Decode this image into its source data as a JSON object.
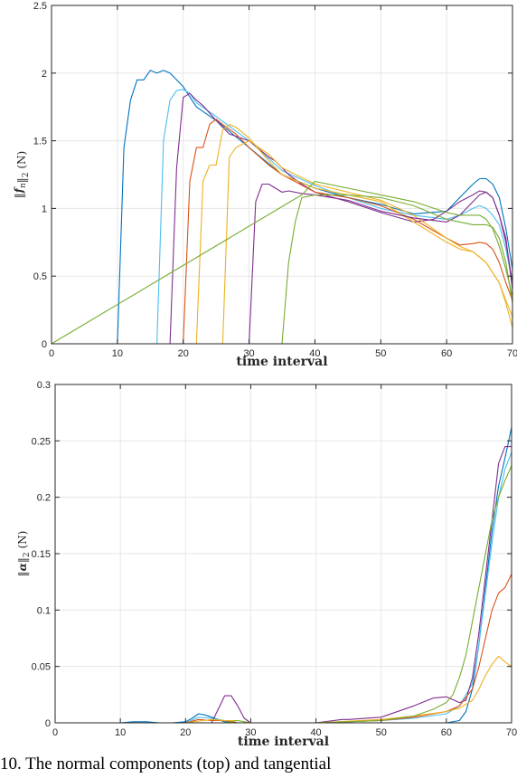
{
  "caption": "10. The normal components (top) and tangential",
  "colors": [
    "#0072bd",
    "#d95319",
    "#edb120",
    "#7e2f8e",
    "#77ac30",
    "#4dbeee"
  ],
  "chart_data": [
    {
      "type": "line",
      "xlabel": "time interval",
      "ylabel": "‖f_n‖₂ (N)",
      "ylabel_parts": {
        "norm_open": "‖",
        "sym": "f",
        "sub": "n",
        "norm_close": "‖",
        "sub2": "2",
        "unit": " (N)"
      },
      "xlim": [
        0,
        70
      ],
      "ylim": [
        0,
        2.5
      ],
      "xticks": [
        0,
        10,
        20,
        30,
        40,
        50,
        60,
        70
      ],
      "yticks": [
        0,
        0.5,
        1,
        1.5,
        2,
        2.5
      ],
      "ytick_labels": [
        "0",
        "0.5",
        "1",
        "1.5",
        "2",
        "2.5"
      ],
      "grid": true,
      "series": [
        {
          "color": "#0072bd",
          "x": [
            0,
            10,
            11,
            12,
            13,
            14,
            15,
            16,
            17,
            18,
            20,
            22,
            25,
            30,
            35,
            40,
            45,
            50,
            55,
            60,
            62,
            64,
            65,
            66,
            67,
            68,
            69,
            70
          ],
          "y": [
            0,
            0,
            1.45,
            1.8,
            1.95,
            1.95,
            2.02,
            2.0,
            2.02,
            2.0,
            1.9,
            1.75,
            1.65,
            1.45,
            1.25,
            1.15,
            1.08,
            1.03,
            0.96,
            0.98,
            1.08,
            1.18,
            1.22,
            1.22,
            1.18,
            1.08,
            0.85,
            0.55
          ]
        },
        {
          "color": "#4dbeee",
          "x": [
            0,
            16,
            17,
            18,
            19,
            20,
            21,
            22,
            25,
            30,
            35,
            40,
            45,
            50,
            55,
            60,
            62,
            64,
            65,
            66,
            67,
            68,
            69,
            70
          ],
          "y": [
            0,
            0,
            1.5,
            1.8,
            1.87,
            1.88,
            1.85,
            1.78,
            1.68,
            1.5,
            1.28,
            1.17,
            1.08,
            1.0,
            0.95,
            0.92,
            0.95,
            1.0,
            1.02,
            1.0,
            0.95,
            0.88,
            0.7,
            0.45
          ]
        },
        {
          "color": "#7e2f8e",
          "x": [
            0,
            18,
            19,
            20,
            21,
            22,
            23,
            25,
            27,
            30,
            32,
            33,
            34,
            35,
            36,
            38,
            40,
            45,
            50,
            55,
            58,
            60,
            62,
            64,
            65,
            66,
            67,
            68,
            69,
            70
          ],
          "y": [
            0,
            0,
            1.3,
            1.82,
            1.85,
            1.8,
            1.76,
            1.65,
            1.55,
            1.5,
            1.42,
            1.38,
            1.35,
            1.3,
            1.25,
            1.18,
            1.12,
            1.05,
            0.97,
            0.9,
            0.92,
            0.98,
            1.05,
            1.1,
            1.13,
            1.12,
            1.08,
            0.95,
            0.78,
            0.4
          ]
        },
        {
          "color": "#d95319",
          "x": [
            0,
            20,
            21,
            22,
            23,
            24,
            25,
            26,
            28,
            30,
            33,
            35,
            40,
            45,
            50,
            55,
            60,
            62,
            64,
            65,
            66,
            67,
            68,
            69,
            70
          ],
          "y": [
            0,
            0,
            1.2,
            1.45,
            1.45,
            1.62,
            1.66,
            1.62,
            1.55,
            1.45,
            1.32,
            1.25,
            1.12,
            1.08,
            1.02,
            0.92,
            0.78,
            0.73,
            0.74,
            0.75,
            0.74,
            0.7,
            0.6,
            0.45,
            0.32
          ]
        },
        {
          "color": "#edb120",
          "x": [
            0,
            22,
            23,
            24,
            25,
            26,
            27,
            28,
            30,
            33,
            35,
            40,
            45,
            50,
            55,
            60,
            62,
            64,
            66,
            68,
            69,
            70
          ],
          "y": [
            0,
            0,
            1.2,
            1.32,
            1.32,
            1.58,
            1.62,
            1.6,
            1.52,
            1.35,
            1.25,
            1.15,
            1.1,
            1.05,
            0.9,
            0.75,
            0.7,
            0.68,
            0.6,
            0.45,
            0.3,
            0.12
          ]
        },
        {
          "color": "#edb120",
          "x": [
            0,
            26,
            27,
            28,
            30,
            33,
            35,
            40,
            45,
            50,
            55,
            60,
            62,
            64,
            66,
            68,
            69,
            70
          ],
          "y": [
            0,
            0,
            1.38,
            1.45,
            1.5,
            1.4,
            1.3,
            1.18,
            1.12,
            1.06,
            0.95,
            0.78,
            0.72,
            0.68,
            0.6,
            0.45,
            0.32,
            0.2
          ]
        },
        {
          "color": "#7e2f8e",
          "x": [
            0,
            30,
            31,
            32,
            33,
            34,
            35,
            36,
            38,
            40,
            45,
            50,
            55,
            60,
            62,
            64,
            65,
            66,
            67,
            68,
            69,
            70
          ],
          "y": [
            0,
            0,
            1.05,
            1.18,
            1.18,
            1.15,
            1.12,
            1.13,
            1.11,
            1.1,
            1.06,
            0.98,
            0.93,
            0.9,
            0.95,
            1.05,
            1.1,
            1.12,
            1.08,
            0.95,
            0.75,
            0.45
          ]
        },
        {
          "color": "#77ac30",
          "x": [
            0,
            35,
            36,
            37,
            38,
            40,
            45,
            50,
            55,
            60,
            62,
            64,
            65,
            66,
            67,
            68,
            69,
            70
          ],
          "y": [
            0,
            0,
            0.6,
            0.9,
            1.08,
            1.1,
            1.1,
            1.08,
            1.02,
            0.92,
            0.9,
            0.88,
            0.88,
            0.88,
            0.86,
            0.78,
            0.6,
            0.3
          ]
        },
        {
          "color": "#77ac30",
          "x": [
            0,
            38,
            40,
            45,
            50,
            55,
            60,
            62,
            64,
            65,
            66,
            67,
            68,
            69,
            70
          ],
          "y": [
            0,
            1.1,
            1.2,
            1.15,
            1.1,
            1.05,
            0.97,
            0.95,
            0.95,
            0.95,
            0.92,
            0.85,
            0.72,
            0.55,
            0.35
          ]
        },
        {
          "color": "#7e2f8e",
          "x": [
            0,
            70
          ],
          "y": [
            0,
            0
          ]
        }
      ]
    },
    {
      "type": "line",
      "xlabel": "time interval",
      "ylabel": "‖α‖₂ (N)",
      "ylabel_parts": {
        "norm_open": "‖",
        "sym": "α",
        "sub": "",
        "norm_close": "‖",
        "sub2": "2",
        "unit": " (N)"
      },
      "xlim": [
        0,
        70
      ],
      "ylim": [
        0,
        0.3
      ],
      "xticks": [
        0,
        10,
        20,
        30,
        40,
        50,
        60,
        70
      ],
      "yticks": [
        0,
        0.05,
        0.1,
        0.15,
        0.2,
        0.25,
        0.3
      ],
      "ytick_labels": [
        "0",
        "0.05",
        "0.1",
        "0.15",
        "0.2",
        "0.25",
        "0.3"
      ],
      "grid": true,
      "series": [
        {
          "color": "#0072bd",
          "x": [
            0,
            10,
            12,
            14,
            16,
            18,
            20,
            21,
            22,
            23,
            24,
            25,
            26,
            28,
            30,
            40,
            50,
            55,
            60,
            62,
            63,
            64,
            65,
            66,
            67,
            68,
            69,
            70
          ],
          "y": [
            0,
            0,
            0.001,
            0.001,
            0,
            0,
            0.001,
            0.004,
            0.008,
            0.007,
            0.005,
            0.003,
            0.001,
            0,
            0,
            0,
            0,
            0,
            0,
            0.002,
            0.01,
            0.03,
            0.07,
            0.12,
            0.17,
            0.21,
            0.235,
            0.262
          ]
        },
        {
          "color": "#4dbeee",
          "x": [
            0,
            20,
            22,
            24,
            26,
            28,
            30,
            40,
            50,
            55,
            60,
            62,
            64,
            65,
            66,
            67,
            68,
            69,
            70
          ],
          "y": [
            0,
            0,
            0.005,
            0.004,
            0.002,
            0,
            0,
            0,
            0.002,
            0.004,
            0.008,
            0.015,
            0.035,
            0.07,
            0.115,
            0.16,
            0.2,
            0.225,
            0.24
          ]
        },
        {
          "color": "#7e2f8e",
          "x": [
            0,
            24,
            25,
            26,
            27,
            28,
            29,
            30,
            40,
            44,
            45,
            50,
            55,
            58,
            60,
            62,
            63,
            64,
            65,
            66,
            67,
            68,
            69,
            70
          ],
          "y": [
            0,
            0,
            0.012,
            0.024,
            0.024,
            0.015,
            0.004,
            0,
            0,
            0.003,
            0.003,
            0.005,
            0.015,
            0.022,
            0.023,
            0.018,
            0.02,
            0.04,
            0.08,
            0.13,
            0.18,
            0.23,
            0.245,
            0.245
          ]
        },
        {
          "color": "#d95319",
          "x": [
            0,
            20,
            22,
            24,
            26,
            28,
            30,
            40,
            50,
            55,
            60,
            62,
            64,
            65,
            66,
            67,
            68,
            69,
            70
          ],
          "y": [
            0,
            0,
            0.003,
            0.002,
            0.002,
            0,
            0,
            0,
            0.002,
            0.005,
            0.01,
            0.015,
            0.03,
            0.05,
            0.075,
            0.1,
            0.115,
            0.12,
            0.132
          ]
        },
        {
          "color": "#edb120",
          "x": [
            0,
            20,
            24,
            26,
            28,
            30,
            40,
            50,
            55,
            60,
            62,
            64,
            65,
            66,
            67,
            68,
            69,
            70
          ],
          "y": [
            0,
            0,
            0.003,
            0.002,
            0.002,
            0,
            0,
            0.003,
            0.006,
            0.01,
            0.013,
            0.02,
            0.03,
            0.042,
            0.052,
            0.059,
            0.054,
            0.05
          ]
        },
        {
          "color": "#77ac30",
          "x": [
            0,
            26,
            28,
            30,
            40,
            50,
            55,
            58,
            60,
            61,
            62,
            63,
            64,
            65,
            66,
            67,
            68,
            69,
            70
          ],
          "y": [
            0,
            0,
            0.002,
            0,
            0,
            0.002,
            0.006,
            0.012,
            0.018,
            0.025,
            0.04,
            0.06,
            0.09,
            0.12,
            0.15,
            0.18,
            0.2,
            0.215,
            0.228
          ]
        }
      ]
    }
  ]
}
